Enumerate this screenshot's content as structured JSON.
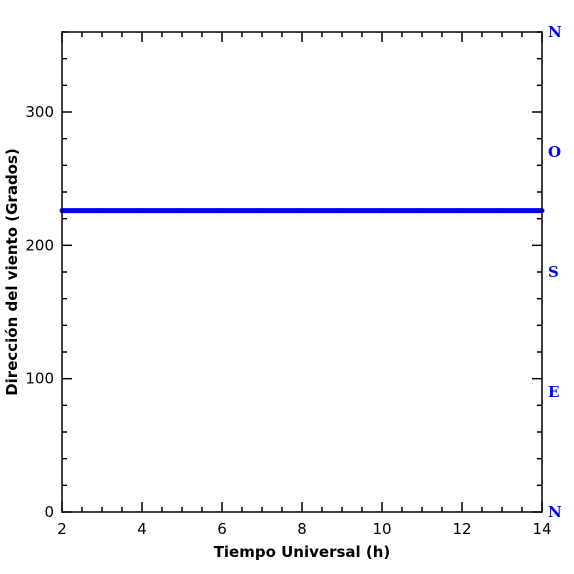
{
  "chart_data": {
    "type": "line",
    "title": "",
    "xlabel": "Tiempo Universal (h)",
    "ylabel": "Dirección del viento (Grados)",
    "xlim": [
      2,
      14
    ],
    "ylim": [
      0,
      360
    ],
    "x_ticks": [
      2,
      4,
      6,
      8,
      10,
      12,
      14
    ],
    "y_ticks": [
      0,
      100,
      200,
      300
    ],
    "right_axis_labels": [
      {
        "label": "N",
        "value": 0
      },
      {
        "label": "E",
        "value": 90
      },
      {
        "label": "S",
        "value": 180
      },
      {
        "label": "O",
        "value": 270
      },
      {
        "label": "N",
        "value": 360
      }
    ],
    "series": [
      {
        "color": "#0000ff",
        "x": [
          2,
          3,
          4,
          5,
          6,
          7,
          8,
          9,
          10,
          11,
          12,
          13,
          14
        ],
        "y": [
          226,
          226,
          226,
          226,
          226,
          226,
          226,
          226,
          226,
          226,
          226,
          226,
          226
        ]
      }
    ],
    "grid": false,
    "colors": {
      "axis": "#000000",
      "series": "#0000ff",
      "compass": "#0000ff"
    }
  }
}
